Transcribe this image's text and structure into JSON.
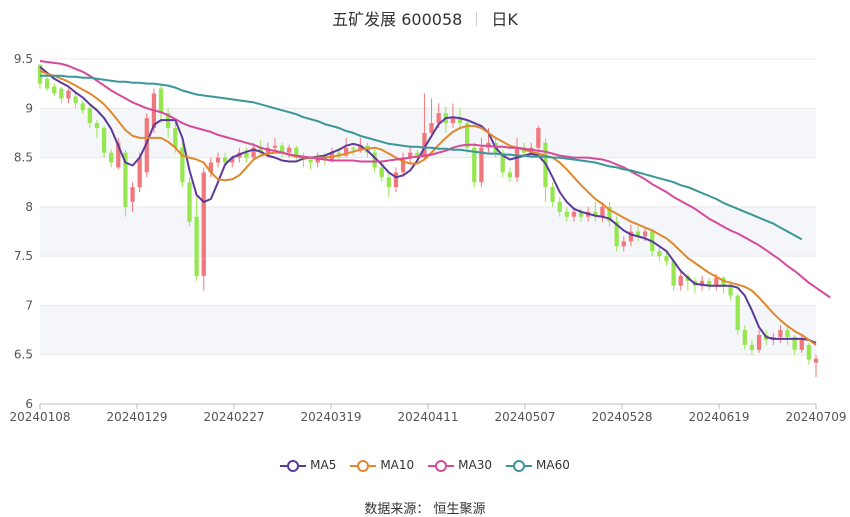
{
  "header": {
    "title": "五矿发展 600058",
    "period": "日K"
  },
  "source": "数据来源： 恒生聚源",
  "colors": {
    "up": "#f0787d",
    "down": "#96e650",
    "grid": "#e8e8e8",
    "band": "#f5f6fa"
  },
  "chart_data": {
    "type": "candlestick",
    "x_labels": [
      "20240108",
      "20240129",
      "20240227",
      "20240319",
      "20240411",
      "20240507",
      "20240528",
      "20240619",
      "20240709"
    ],
    "ylim": [
      6,
      9.5
    ],
    "y_ticks": [
      "6",
      "6.5",
      "7",
      "7.5",
      "8",
      "8.5",
      "9",
      "9.5"
    ],
    "legend_position": "bottom",
    "candles": [
      [
        9.44,
        9.25,
        9.45,
        9.2
      ],
      [
        9.3,
        9.2,
        9.33,
        9.18
      ],
      [
        9.22,
        9.15,
        9.25,
        9.12
      ],
      [
        9.2,
        9.1,
        9.22,
        9.05
      ],
      [
        9.1,
        9.18,
        9.2,
        9.05
      ],
      [
        9.12,
        9.05,
        9.15,
        9.0
      ],
      [
        9.05,
        8.98,
        9.08,
        8.95
      ],
      [
        9.0,
        8.85,
        9.02,
        8.8
      ],
      [
        8.85,
        8.8,
        8.88,
        8.7
      ],
      [
        8.8,
        8.55,
        8.82,
        8.5
      ],
      [
        8.55,
        8.45,
        8.58,
        8.4
      ],
      [
        8.4,
        8.65,
        8.7,
        8.38
      ],
      [
        8.55,
        8.0,
        8.58,
        7.9
      ],
      [
        8.05,
        8.2,
        8.25,
        7.95
      ],
      [
        8.2,
        8.5,
        8.55,
        8.15
      ],
      [
        8.35,
        8.9,
        8.95,
        8.3
      ],
      [
        8.8,
        9.15,
        9.2,
        8.75
      ],
      [
        9.2,
        8.95,
        9.25,
        8.85
      ],
      [
        8.95,
        8.8,
        9.0,
        8.7
      ],
      [
        8.8,
        8.6,
        8.85,
        8.55
      ],
      [
        8.6,
        8.25,
        8.65,
        8.2
      ],
      [
        8.25,
        7.85,
        8.3,
        7.8
      ],
      [
        7.9,
        7.3,
        8.1,
        7.25
      ],
      [
        7.3,
        8.35,
        8.4,
        7.15
      ],
      [
        8.35,
        8.45,
        8.5,
        8.3
      ],
      [
        8.45,
        8.5,
        8.55,
        8.4
      ],
      [
        8.5,
        8.45,
        8.55,
        8.42
      ],
      [
        8.45,
        8.5,
        8.52,
        8.4
      ],
      [
        8.5,
        8.55,
        8.6,
        8.45
      ],
      [
        8.55,
        8.5,
        8.6,
        8.45
      ],
      [
        8.5,
        8.6,
        8.65,
        8.48
      ],
      [
        8.6,
        8.55,
        8.68,
        8.52
      ],
      [
        8.55,
        8.6,
        8.65,
        8.5
      ],
      [
        8.6,
        8.62,
        8.7,
        8.55
      ],
      [
        8.62,
        8.55,
        8.65,
        8.5
      ],
      [
        8.55,
        8.6,
        8.63,
        8.5
      ],
      [
        8.6,
        8.5,
        8.62,
        8.45
      ],
      [
        8.5,
        8.48,
        8.55,
        8.4
      ],
      [
        8.48,
        8.45,
        8.5,
        8.38
      ],
      [
        8.45,
        8.5,
        8.55,
        8.4
      ],
      [
        8.5,
        8.48,
        8.55,
        8.42
      ],
      [
        8.48,
        8.55,
        8.6,
        8.45
      ],
      [
        8.55,
        8.52,
        8.6,
        8.48
      ],
      [
        8.52,
        8.6,
        8.7,
        8.5
      ],
      [
        8.6,
        8.58,
        8.65,
        8.52
      ],
      [
        8.58,
        8.62,
        8.7,
        8.55
      ],
      [
        8.62,
        8.55,
        8.65,
        8.5
      ],
      [
        8.55,
        8.4,
        8.58,
        8.35
      ],
      [
        8.4,
        8.3,
        8.45,
        8.25
      ],
      [
        8.3,
        8.2,
        8.35,
        8.1
      ],
      [
        8.2,
        8.35,
        8.4,
        8.15
      ],
      [
        8.35,
        8.5,
        8.55,
        8.3
      ],
      [
        8.5,
        8.55,
        8.6,
        8.45
      ],
      [
        8.55,
        8.5,
        8.58,
        8.45
      ],
      [
        8.5,
        8.75,
        9.15,
        8.48
      ],
      [
        8.75,
        8.85,
        9.1,
        8.7
      ],
      [
        8.85,
        8.95,
        9.05,
        8.8
      ],
      [
        8.95,
        8.85,
        9.02,
        8.75
      ],
      [
        8.85,
        8.9,
        9.05,
        8.8
      ],
      [
        8.9,
        8.85,
        9.0,
        8.8
      ],
      [
        8.85,
        8.6,
        8.88,
        8.55
      ],
      [
        8.6,
        8.25,
        8.65,
        8.2
      ],
      [
        8.25,
        8.6,
        8.7,
        8.2
      ],
      [
        8.6,
        8.65,
        8.8,
        8.55
      ],
      [
        8.65,
        8.55,
        8.7,
        8.5
      ],
      [
        8.55,
        8.35,
        8.58,
        8.3
      ],
      [
        8.35,
        8.3,
        8.4,
        8.25
      ],
      [
        8.3,
        8.6,
        8.7,
        8.25
      ],
      [
        8.6,
        8.55,
        8.65,
        8.5
      ],
      [
        8.55,
        8.6,
        8.65,
        8.5
      ],
      [
        8.6,
        8.8,
        8.82,
        8.55
      ],
      [
        8.65,
        8.2,
        8.7,
        8.05
      ],
      [
        8.2,
        8.05,
        8.25,
        8.0
      ],
      [
        8.05,
        7.95,
        8.1,
        7.9
      ],
      [
        7.95,
        7.9,
        8.0,
        7.85
      ],
      [
        7.9,
        7.95,
        8.0,
        7.85
      ],
      [
        7.95,
        7.9,
        7.98,
        7.85
      ],
      [
        7.9,
        7.95,
        8.0,
        7.85
      ],
      [
        7.95,
        7.9,
        8.05,
        7.85
      ],
      [
        7.9,
        8.0,
        8.05,
        7.85
      ],
      [
        8.0,
        7.85,
        8.05,
        7.8
      ],
      [
        7.85,
        7.6,
        7.9,
        7.55
      ],
      [
        7.6,
        7.65,
        7.7,
        7.55
      ],
      [
        7.65,
        7.75,
        7.82,
        7.6
      ],
      [
        7.75,
        7.7,
        7.8,
        7.65
      ],
      [
        7.7,
        7.75,
        7.8,
        7.65
      ],
      [
        7.75,
        7.55,
        7.78,
        7.5
      ],
      [
        7.55,
        7.5,
        7.6,
        7.45
      ],
      [
        7.5,
        7.45,
        7.55,
        7.4
      ],
      [
        7.45,
        7.2,
        7.48,
        7.15
      ],
      [
        7.2,
        7.3,
        7.35,
        7.15
      ],
      [
        7.3,
        7.25,
        7.32,
        7.15
      ],
      [
        7.25,
        7.2,
        7.28,
        7.12
      ],
      [
        7.2,
        7.25,
        7.3,
        7.15
      ],
      [
        7.25,
        7.2,
        7.28,
        7.15
      ],
      [
        7.2,
        7.28,
        7.32,
        7.15
      ],
      [
        7.28,
        7.2,
        7.3,
        7.12
      ],
      [
        7.2,
        7.1,
        7.25,
        7.05
      ],
      [
        7.1,
        6.75,
        7.12,
        6.7
      ],
      [
        6.75,
        6.6,
        6.8,
        6.55
      ],
      [
        6.6,
        6.55,
        6.65,
        6.5
      ],
      [
        6.55,
        6.7,
        6.75,
        6.52
      ],
      [
        6.7,
        6.65,
        6.75,
        6.6
      ],
      [
        6.65,
        6.68,
        6.72,
        6.6
      ],
      [
        6.68,
        6.75,
        6.8,
        6.62
      ],
      [
        6.75,
        6.68,
        6.78,
        6.6
      ],
      [
        6.68,
        6.55,
        6.7,
        6.5
      ],
      [
        6.55,
        6.65,
        6.7,
        6.52
      ],
      [
        6.6,
        6.45,
        6.62,
        6.4
      ],
      [
        6.42,
        6.46,
        6.5,
        6.27
      ]
    ],
    "series": [
      {
        "name": "MA5",
        "color": "#5b3a9a",
        "values": [
          9.42,
          9.36,
          9.3,
          9.26,
          9.22,
          9.16,
          9.11,
          9.04,
          8.98,
          8.9,
          8.79,
          8.62,
          8.45,
          8.42,
          8.5,
          8.65,
          8.83,
          8.88,
          8.88,
          8.88,
          8.7,
          8.37,
          8.12,
          8.05,
          8.08,
          8.25,
          8.43,
          8.5,
          8.53,
          8.56,
          8.58,
          8.56,
          8.52,
          8.5,
          8.47,
          8.46,
          8.46,
          8.49,
          8.5,
          8.51,
          8.52,
          8.55,
          8.58,
          8.62,
          8.64,
          8.62,
          8.57,
          8.5,
          8.43,
          8.35,
          8.3,
          8.32,
          8.37,
          8.47,
          8.6,
          8.72,
          8.84,
          8.9,
          8.91,
          8.9,
          8.88,
          8.85,
          8.82,
          8.75,
          8.6,
          8.52,
          8.48,
          8.5,
          8.52,
          8.54,
          8.52,
          8.44,
          8.3,
          8.15,
          8.05,
          7.98,
          7.95,
          7.93,
          7.91,
          7.9,
          7.88,
          7.82,
          7.76,
          7.72,
          7.7,
          7.68,
          7.65,
          7.6,
          7.55,
          7.45,
          7.35,
          7.28,
          7.22,
          7.21,
          7.2,
          7.2,
          7.2,
          7.2,
          7.18,
          7.1,
          6.95,
          6.78,
          6.68,
          6.66,
          6.66,
          6.66,
          6.66,
          6.66,
          6.65,
          6.62
        ]
      },
      {
        "name": "MA10",
        "color": "#e0882e",
        "values": [
          9.38,
          9.35,
          9.33,
          9.3,
          9.27,
          9.23,
          9.19,
          9.15,
          9.1,
          9.04,
          8.96,
          8.87,
          8.78,
          8.72,
          8.7,
          8.7,
          8.7,
          8.7,
          8.66,
          8.6,
          8.52,
          8.5,
          8.48,
          8.45,
          8.35,
          8.28,
          8.27,
          8.28,
          8.32,
          8.4,
          8.48,
          8.52,
          8.54,
          8.55,
          8.55,
          8.53,
          8.51,
          8.5,
          8.5,
          8.5,
          8.5,
          8.51,
          8.52,
          8.54,
          8.56,
          8.58,
          8.59,
          8.6,
          8.58,
          8.54,
          8.5,
          8.46,
          8.44,
          8.44,
          8.48,
          8.55,
          8.63,
          8.7,
          8.76,
          8.8,
          8.82,
          8.82,
          8.8,
          8.75,
          8.7,
          8.66,
          8.62,
          8.6,
          8.58,
          8.56,
          8.54,
          8.52,
          8.5,
          8.45,
          8.38,
          8.3,
          8.22,
          8.15,
          8.08,
          8.03,
          7.97,
          7.93,
          7.89,
          7.85,
          7.82,
          7.79,
          7.76,
          7.72,
          7.68,
          7.62,
          7.55,
          7.48,
          7.43,
          7.38,
          7.33,
          7.29,
          7.25,
          7.23,
          7.21,
          7.19,
          7.15,
          7.08,
          7.0,
          6.92,
          6.85,
          6.79,
          6.74,
          6.7,
          6.65,
          6.6
        ]
      },
      {
        "name": "MA30",
        "color": "#d54a9b",
        "values": [
          9.48,
          9.47,
          9.46,
          9.45,
          9.43,
          9.4,
          9.37,
          9.33,
          9.28,
          9.23,
          9.18,
          9.14,
          9.1,
          9.06,
          9.03,
          9.0,
          8.98,
          8.96,
          8.93,
          8.89,
          8.85,
          8.82,
          8.8,
          8.78,
          8.76,
          8.73,
          8.71,
          8.69,
          8.67,
          8.65,
          8.63,
          8.6,
          8.58,
          8.57,
          8.55,
          8.53,
          8.52,
          8.51,
          8.5,
          8.49,
          8.48,
          8.47,
          8.47,
          8.47,
          8.47,
          8.46,
          8.46,
          8.46,
          8.46,
          8.47,
          8.48,
          8.49,
          8.5,
          8.51,
          8.52,
          8.53,
          8.55,
          8.57,
          8.6,
          8.62,
          8.63,
          8.63,
          8.62,
          8.62,
          8.61,
          8.61,
          8.6,
          8.6,
          8.59,
          8.58,
          8.57,
          8.56,
          8.54,
          8.52,
          8.51,
          8.5,
          8.5,
          8.5,
          8.49,
          8.48,
          8.46,
          8.43,
          8.4,
          8.36,
          8.32,
          8.28,
          8.23,
          8.19,
          8.15,
          8.1,
          8.06,
          8.02,
          7.98,
          7.93,
          7.88,
          7.84,
          7.8,
          7.76,
          7.73,
          7.69,
          7.65,
          7.61,
          7.56,
          7.51,
          7.46,
          7.4,
          7.35,
          7.29,
          7.23,
          7.18,
          7.13,
          7.08
        ]
      },
      {
        "name": "MA60",
        "color": "#3a9797",
        "values": [
          9.33,
          9.33,
          9.33,
          9.33,
          9.32,
          9.32,
          9.31,
          9.31,
          9.3,
          9.29,
          9.28,
          9.27,
          9.27,
          9.26,
          9.26,
          9.25,
          9.25,
          9.24,
          9.23,
          9.21,
          9.18,
          9.16,
          9.14,
          9.13,
          9.12,
          9.11,
          9.1,
          9.09,
          9.08,
          9.07,
          9.06,
          9.04,
          9.02,
          9.0,
          8.98,
          8.96,
          8.94,
          8.91,
          8.89,
          8.87,
          8.84,
          8.82,
          8.8,
          8.77,
          8.75,
          8.72,
          8.7,
          8.68,
          8.66,
          8.64,
          8.63,
          8.62,
          8.61,
          8.61,
          8.6,
          8.6,
          8.59,
          8.59,
          8.58,
          8.58,
          8.57,
          8.56,
          8.55,
          8.54,
          8.54,
          8.53,
          8.53,
          8.52,
          8.52,
          8.51,
          8.51,
          8.51,
          8.5,
          8.5,
          8.49,
          8.48,
          8.47,
          8.46,
          8.45,
          8.43,
          8.41,
          8.4,
          8.38,
          8.37,
          8.35,
          8.33,
          8.31,
          8.29,
          8.27,
          8.25,
          8.22,
          8.2,
          8.17,
          8.14,
          8.11,
          8.08,
          8.04,
          8.01,
          7.98,
          7.95,
          7.92,
          7.89,
          7.86,
          7.83,
          7.79,
          7.75,
          7.71,
          7.67
        ]
      }
    ]
  }
}
